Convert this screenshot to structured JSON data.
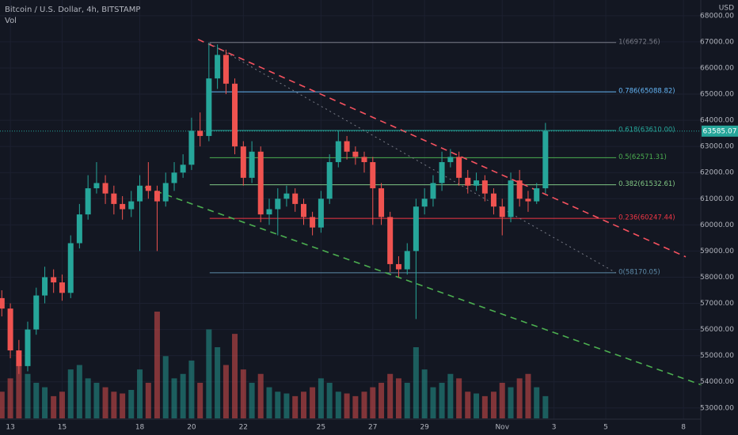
{
  "chart_data": {
    "type": "candlestick",
    "title": "Bitcoin / U.S. Dollar, 4h, BITSTAMP",
    "indicator": "Vol",
    "currency": "USD",
    "up_color": "#26a69a",
    "down_color": "#ef5350",
    "x": [
      -0.33,
      0,
      0.33,
      0.67,
      1,
      1.33,
      1.67,
      2,
      2.33,
      2.67,
      3,
      3.33,
      3.67,
      4,
      4.33,
      4.67,
      5,
      5.33,
      5.67,
      6,
      6.33,
      6.67,
      7,
      7.33,
      7.67,
      8,
      8.33,
      8.67,
      9,
      9.33,
      9.67,
      10,
      10.33,
      10.67,
      11,
      11.33,
      11.67,
      12,
      12.33,
      12.67,
      13,
      13.33,
      13.67,
      14,
      14.33,
      14.67,
      15,
      15.33,
      15.67,
      16,
      16.33,
      16.67,
      17,
      17.33,
      17.67,
      18,
      18.33,
      18.67,
      19,
      19.33,
      19.67,
      20,
      20.33,
      20.67
    ],
    "open": [
      57200,
      56800,
      55200,
      54600,
      56000,
      57300,
      58000,
      57800,
      57400,
      59300,
      60400,
      61400,
      61600,
      61200,
      60800,
      60600,
      60900,
      61500,
      61300,
      60900,
      61600,
      62000,
      62300,
      63600,
      63400,
      65600,
      66500,
      65400,
      63000,
      61800,
      62800,
      60400,
      60600,
      61000,
      61200,
      60800,
      60300,
      59900,
      61000,
      62400,
      63200,
      62800,
      62600,
      62400,
      61400,
      60300,
      58500,
      58300,
      59000,
      60700,
      61000,
      61600,
      62400,
      62600,
      61800,
      61500,
      61700,
      61200,
      60700,
      60300,
      61700,
      61000,
      60900,
      61400
    ],
    "high": [
      57500,
      57000,
      55600,
      56300,
      57600,
      58400,
      58300,
      58100,
      59600,
      60800,
      61900,
      62400,
      61900,
      61500,
      61100,
      61300,
      61900,
      62400,
      61500,
      62000,
      62400,
      62700,
      64100,
      64300,
      66972,
      66900,
      66700,
      65600,
      63200,
      63200,
      63000,
      61000,
      61400,
      61500,
      61400,
      61000,
      60500,
      61300,
      62700,
      63600,
      63400,
      63000,
      62800,
      62600,
      61600,
      60500,
      58800,
      59300,
      61000,
      61400,
      61900,
      62800,
      62900,
      62800,
      62100,
      62000,
      61900,
      61400,
      61000,
      62000,
      62100,
      61300,
      61600,
      63900
    ],
    "low": [
      56500,
      54900,
      54300,
      54400,
      55800,
      57000,
      57400,
      57100,
      57200,
      59100,
      60200,
      61200,
      60800,
      60400,
      60200,
      60300,
      59000,
      61000,
      59000,
      60700,
      61300,
      61800,
      62100,
      63000,
      63200,
      65200,
      65000,
      62700,
      61500,
      61600,
      60100,
      60000,
      59600,
      60700,
      60500,
      60000,
      59600,
      59700,
      60800,
      62200,
      62500,
      62300,
      62000,
      60000,
      60000,
      58200,
      58000,
      58100,
      56400,
      60400,
      60700,
      61300,
      62200,
      61500,
      61200,
      61300,
      60900,
      60400,
      59600,
      60100,
      60700,
      60500,
      60800,
      61200
    ],
    "close": [
      56800,
      55200,
      54600,
      56000,
      57300,
      58000,
      57800,
      57400,
      59300,
      60400,
      61400,
      61600,
      61200,
      60800,
      60600,
      60900,
      61500,
      61300,
      60900,
      61600,
      62000,
      62300,
      63600,
      63400,
      65600,
      66500,
      65400,
      63000,
      61800,
      62800,
      60400,
      60600,
      61000,
      61200,
      60800,
      60300,
      59900,
      61000,
      62400,
      63200,
      62800,
      62600,
      62400,
      61400,
      60300,
      58500,
      58300,
      59000,
      60700,
      61000,
      61600,
      62400,
      62600,
      61800,
      61500,
      61700,
      61200,
      60700,
      60300,
      61700,
      61000,
      60900,
      61400,
      63585.07
    ],
    "volume": [
      30,
      45,
      60,
      50,
      40,
      35,
      25,
      30,
      55,
      60,
      45,
      40,
      35,
      30,
      28,
      32,
      55,
      40,
      120,
      70,
      45,
      50,
      65,
      40,
      100,
      80,
      60,
      95,
      55,
      40,
      50,
      35,
      30,
      28,
      25,
      30,
      35,
      45,
      40,
      30,
      28,
      25,
      30,
      35,
      40,
      50,
      45,
      40,
      80,
      55,
      35,
      40,
      50,
      45,
      30,
      28,
      25,
      30,
      40,
      35,
      45,
      50,
      35,
      25
    ],
    "xlim": [
      -0.4,
      26.67
    ],
    "ylim": [
      52600,
      68600
    ],
    "xticks": [
      {
        "value": 0,
        "label": "13"
      },
      {
        "value": 2,
        "label": "15"
      },
      {
        "value": 5,
        "label": "18"
      },
      {
        "value": 7,
        "label": "20"
      },
      {
        "value": 9,
        "label": "22"
      },
      {
        "value": 12,
        "label": "25"
      },
      {
        "value": 14,
        "label": "27"
      },
      {
        "value": 16,
        "label": "29"
      },
      {
        "value": 19,
        "label": "Nov"
      },
      {
        "value": 21,
        "label": "3"
      },
      {
        "value": 23,
        "label": "5"
      },
      {
        "value": 26,
        "label": "8"
      }
    ],
    "yticks": [
      {
        "value": 53000,
        "label": "53000.00"
      },
      {
        "value": 54000,
        "label": "54000.00"
      },
      {
        "value": 55000,
        "label": "55000.00"
      },
      {
        "value": 56000,
        "label": "56000.00"
      },
      {
        "value": 57000,
        "label": "57000.00"
      },
      {
        "value": 58000,
        "label": "58000.00"
      },
      {
        "value": 59000,
        "label": "59000.00"
      },
      {
        "value": 60000,
        "label": "60000.00"
      },
      {
        "value": 61000,
        "label": "61000.00"
      },
      {
        "value": 62000,
        "label": "62000.00"
      },
      {
        "value": 63000,
        "label": "63000.00"
      },
      {
        "value": 64000,
        "label": "64000.00"
      },
      {
        "value": 65000,
        "label": "65000.00"
      },
      {
        "value": 66000,
        "label": "66000.00"
      },
      {
        "value": 67000,
        "label": "67000.00"
      },
      {
        "value": 68000,
        "label": "68000.00"
      }
    ],
    "fib_x": [
      7.7,
      23.4
    ],
    "fib_levels": [
      {
        "label": "1(66972.56)",
        "value": 66972.56,
        "color": "#787b86"
      },
      {
        "label": "0.786(65088.82)",
        "value": 65088.82,
        "color": "#64b5f6"
      },
      {
        "label": "0.618(63610.00)",
        "value": 63610.0,
        "color": "#26a69a"
      },
      {
        "label": "0.5(62571.31)",
        "value": 62571.31,
        "color": "#4caf50"
      },
      {
        "label": "0.382(61532.61)",
        "value": 61532.61,
        "color": "#81c784"
      },
      {
        "label": "0.236(60247.44)",
        "value": 60247.44,
        "color": "#f23645"
      },
      {
        "label": "0(58170.05)",
        "value": 58170.05,
        "color": "#5d8aa8"
      }
    ],
    "trendlines": [
      {
        "color": "#f7525f",
        "dash": "8 6",
        "x": [
          7.25,
          26.09
        ],
        "y": [
          67093,
          58777
        ]
      },
      {
        "color": "#787b86",
        "dash": "2 4",
        "x": [
          7.7,
          23.39
        ],
        "y": [
          66942,
          58172
        ]
      },
      {
        "color": "#4caf50",
        "dash": "8 6",
        "x": [
          5.2,
          26.7
        ],
        "y": [
          61438,
          53879
        ]
      }
    ]
  }
}
